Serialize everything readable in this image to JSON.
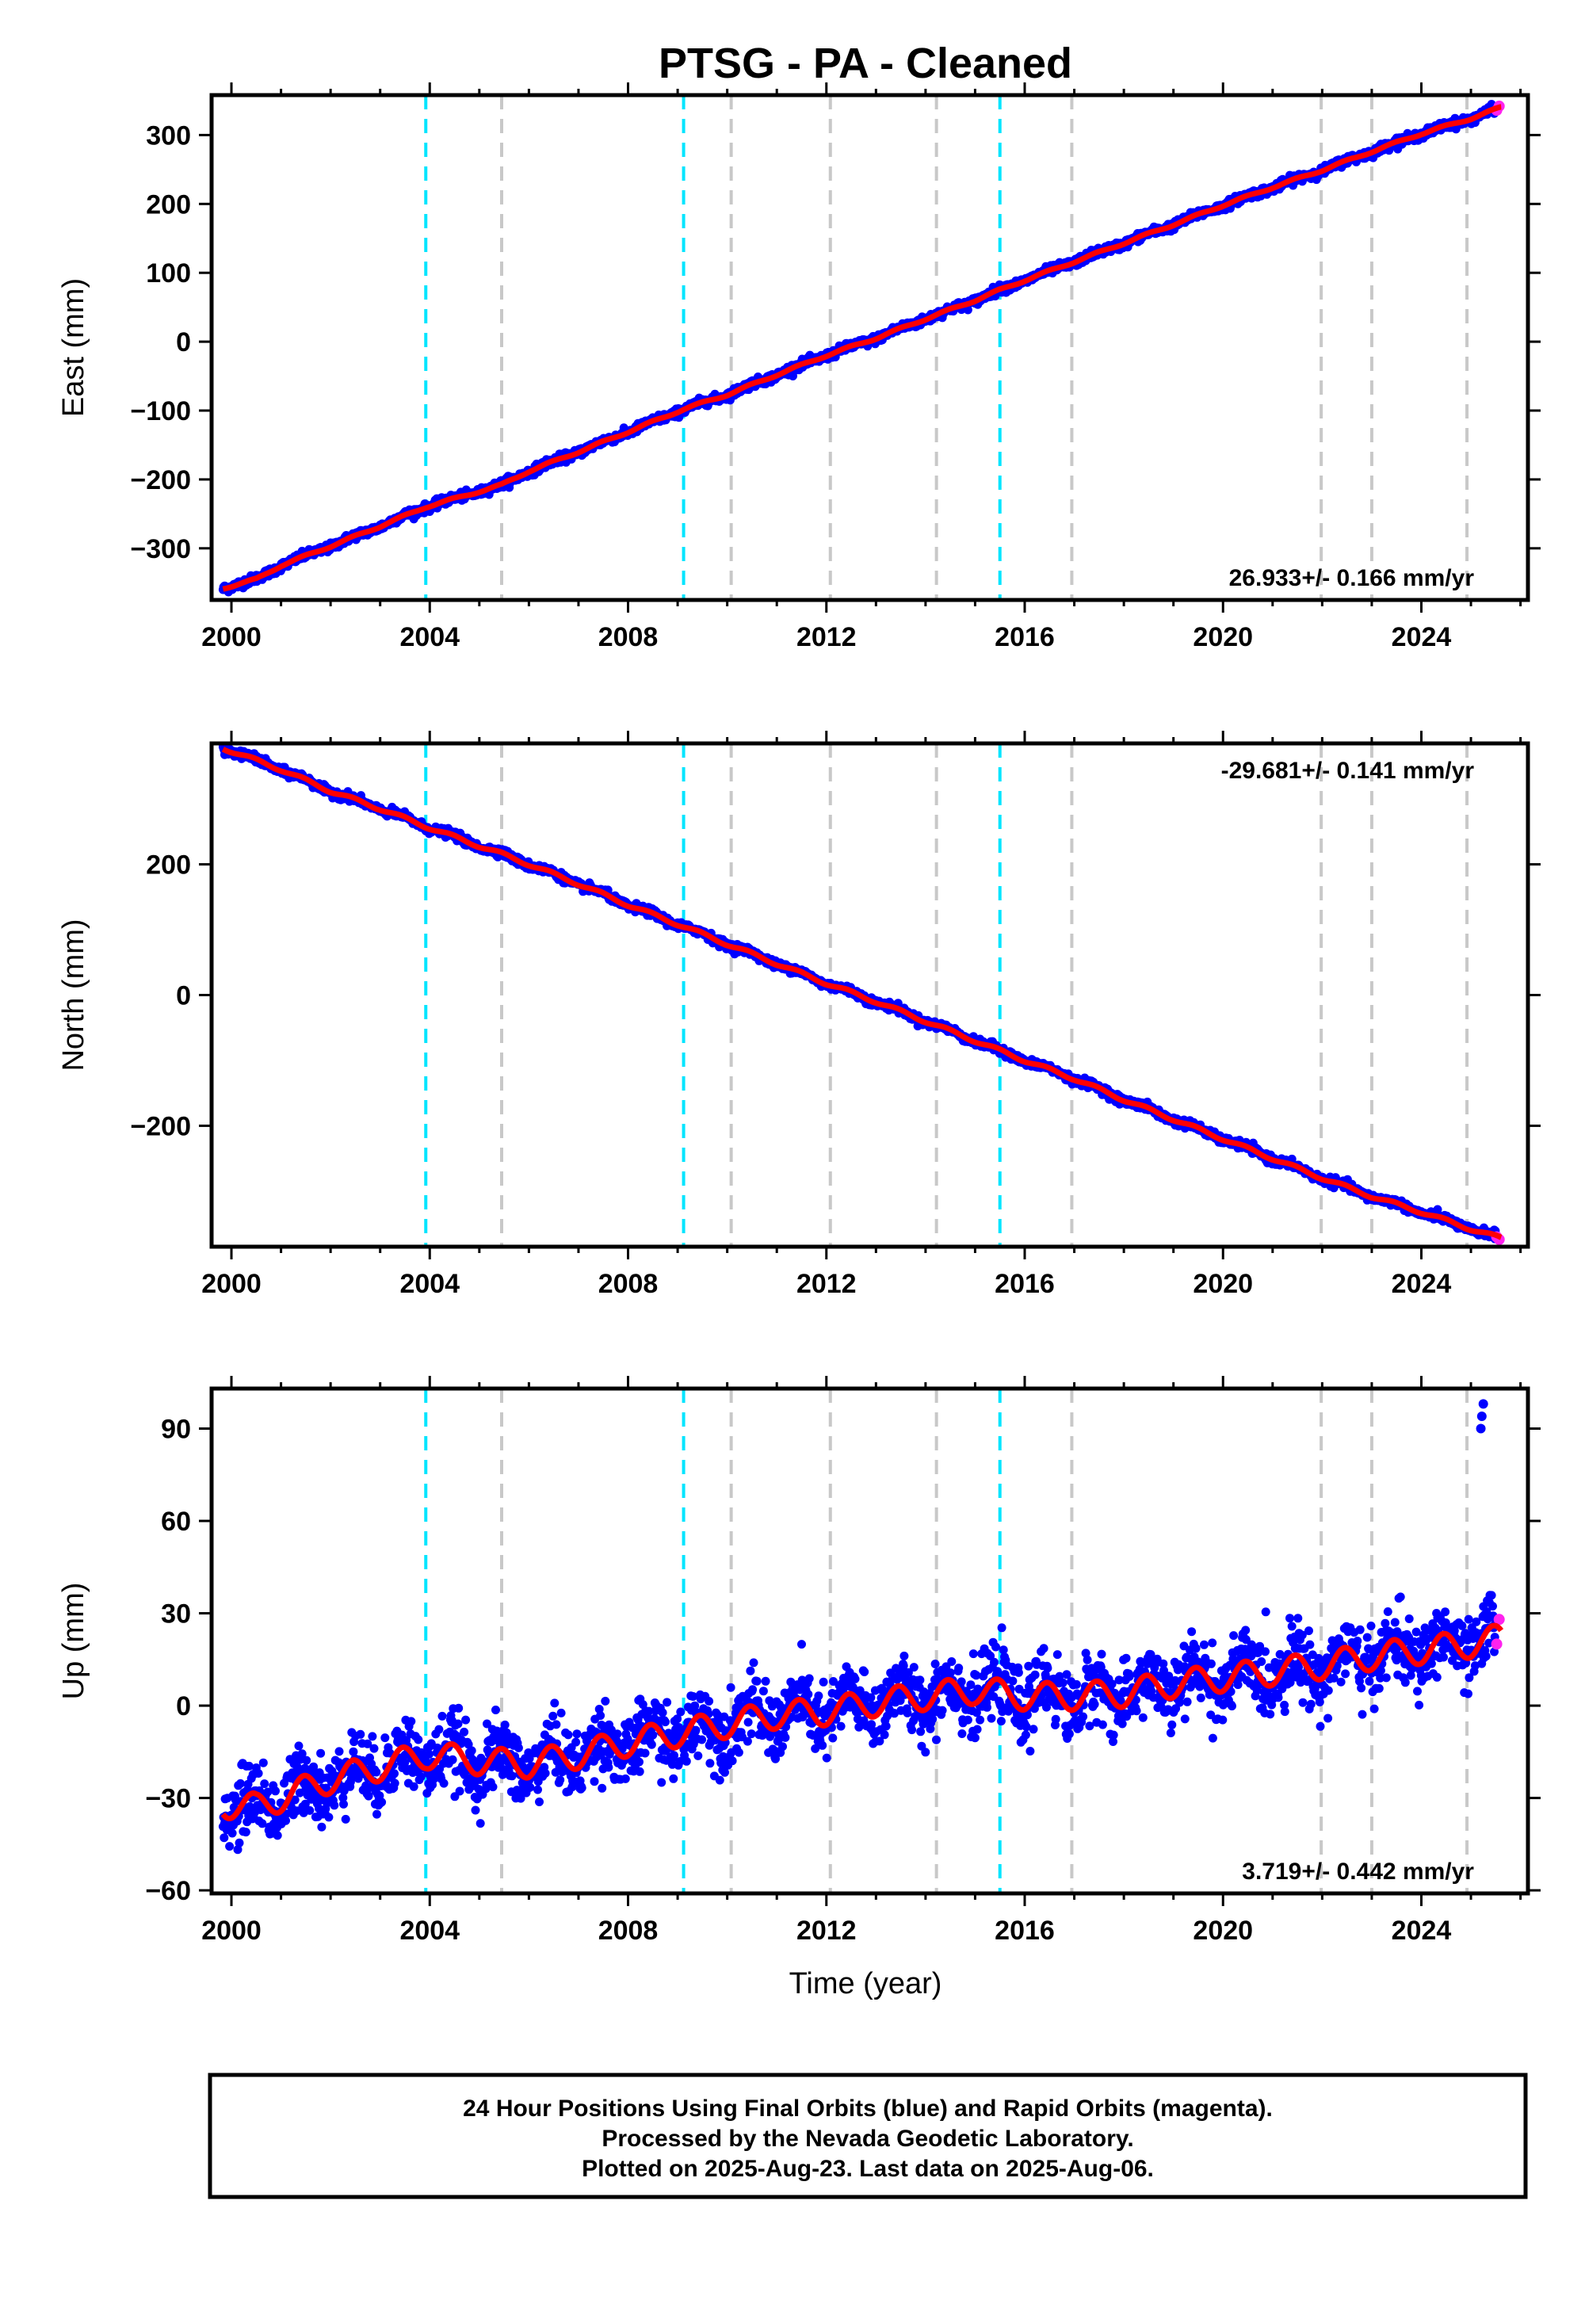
{
  "title": "PTSG  - PA - Cleaned",
  "xlabel": "Time (year)",
  "colors": {
    "final": "#0000ff",
    "rapid": "#ff22ee",
    "model": "#ff0000",
    "equip": "#00e5ff",
    "other": "#c8c8c8",
    "axis": "#000000"
  },
  "offsets": {
    "equipment": [
      2003.92,
      2009.12,
      2015.5
    ],
    "other": [
      2005.45,
      2010.08,
      2012.08,
      2014.22,
      2016.95,
      2021.98,
      2023.0,
      2024.92
    ]
  },
  "caption": {
    "line1": "24 Hour Positions Using Final Orbits (blue) and Rapid Orbits (magenta).",
    "line2": "Processed by the Nevada Geodetic Laboratory.",
    "line3": "Plotted on 2025-Aug-23. Last data on 2025-Aug-06."
  },
  "chart_data": [
    {
      "type": "scatter",
      "component": "East",
      "ylabel": "East (mm)",
      "rate_text": "26.933+/- 0.166 mm/yr",
      "rate_position": "bottom-right",
      "xlim": [
        1999.6,
        2026.15
      ],
      "ylim": [
        -375,
        358
      ],
      "xticks": [
        2000,
        2004,
        2008,
        2012,
        2016,
        2020,
        2024
      ],
      "xtick_labels": [
        "2000",
        "2004",
        "2008",
        "2012",
        "2016",
        "2020",
        "2024"
      ],
      "yticks": [
        -300,
        -200,
        -100,
        0,
        100,
        200,
        300
      ],
      "ytick_labels": [
        "−300",
        "−200",
        "−100",
        "0",
        "100",
        "200",
        "300"
      ],
      "x": [
        1999.83,
        2000.5,
        2001.0,
        2002.0,
        2003.0,
        2003.92,
        2004.5,
        2005.45,
        2006.0,
        2007.0,
        2008.0,
        2009.12,
        2010.0,
        2011.0,
        2012.0,
        2013.0,
        2014.0,
        2015.0,
        2015.5,
        2016.0,
        2017.0,
        2018.0,
        2019.0,
        2020.0,
        2021.0,
        2022.0,
        2023.0,
        2024.0,
        2025.0,
        2025.6
      ],
      "y": [
        -358,
        -345,
        -325,
        -297,
        -268,
        -240,
        -228,
        -208,
        -188,
        -160,
        -131,
        -98,
        -77,
        -48,
        -20,
        5,
        33,
        60,
        75,
        89,
        116,
        143,
        170,
        198,
        224,
        249,
        276,
        302,
        324,
        340
      ],
      "seasonal_amp": 1.5,
      "noise": 3,
      "rapid_y": [
        336,
        342
      ]
    },
    {
      "type": "scatter",
      "component": "North",
      "ylabel": "North (mm)",
      "rate_text": "-29.681+/- 0.141 mm/yr",
      "rate_position": "top-right",
      "xlim": [
        1999.6,
        2026.15
      ],
      "ylim": [
        -385,
        385
      ],
      "xticks": [
        2000,
        2004,
        2008,
        2012,
        2016,
        2020,
        2024
      ],
      "xtick_labels": [
        "2000",
        "2004",
        "2008",
        "2012",
        "2016",
        "2020",
        "2024"
      ],
      "yticks": [
        -200,
        0,
        200
      ],
      "ytick_labels": [
        "−200",
        "0",
        "200"
      ],
      "x": [
        1999.83,
        2001.0,
        2002.0,
        2003.0,
        2003.92,
        2005.0,
        2005.45,
        2006.0,
        2007.0,
        2008.0,
        2009.12,
        2010.0,
        2011.0,
        2012.0,
        2013.0,
        2014.0,
        2015.0,
        2015.5,
        2016.0,
        2017.0,
        2018.0,
        2019.0,
        2020.0,
        2021.0,
        2022.0,
        2023.0,
        2024.0,
        2025.0,
        2025.6
      ],
      "y": [
        378,
        345,
        312,
        285,
        258,
        228,
        216,
        200,
        170,
        138,
        105,
        78,
        48,
        18,
        -10,
        -40,
        -70,
        -85,
        -100,
        -128,
        -160,
        -190,
        -220,
        -250,
        -280,
        -308,
        -332,
        -358,
        -372
      ],
      "seasonal_amp": 2.5,
      "noise": 3,
      "rapid_y": [
        -370,
        -374
      ]
    },
    {
      "type": "scatter",
      "component": "Up",
      "ylabel": "Up (mm)",
      "rate_text": "3.719+/- 0.442 mm/yr",
      "rate_position": "bottom-right",
      "xlim": [
        1999.6,
        2026.15
      ],
      "ylim": [
        -61,
        103
      ],
      "xticks": [
        2000,
        2004,
        2008,
        2012,
        2016,
        2020,
        2024
      ],
      "xtick_labels": [
        "2000",
        "2004",
        "2008",
        "2012",
        "2016",
        "2020",
        "2024"
      ],
      "yticks": [
        -60,
        -30,
        0,
        30,
        60,
        90
      ],
      "ytick_labels": [
        "−60",
        "−30",
        "0",
        "30",
        "60",
        "90"
      ],
      "x": [
        1999.83,
        2000.5,
        2001.0,
        2002.0,
        2003.0,
        2003.92,
        2005.0,
        2006.0,
        2007.0,
        2008.0,
        2009.0,
        2010.0,
        2011.0,
        2012.0,
        2013.0,
        2014.0,
        2015.0,
        2016.0,
        2017.0,
        2018.0,
        2019.0,
        2020.0,
        2021.0,
        2022.0,
        2023.0,
        2024.0,
        2025.0,
        2025.6
      ],
      "y": [
        -32,
        -33,
        -30,
        -24,
        -20,
        -16,
        -18,
        -19,
        -16,
        -12,
        -9,
        -6,
        -3,
        -2,
        1,
        3,
        5,
        3,
        3,
        4,
        7,
        9,
        11,
        13,
        16,
        18,
        20,
        22
      ],
      "seasonal_amp": 4.5,
      "noise": 5.5,
      "rapid_y": [
        20,
        28
      ],
      "outliers": {
        "x": [
          2025.2,
          2025.22,
          2025.25
        ],
        "y": [
          90,
          94,
          98
        ]
      }
    }
  ]
}
